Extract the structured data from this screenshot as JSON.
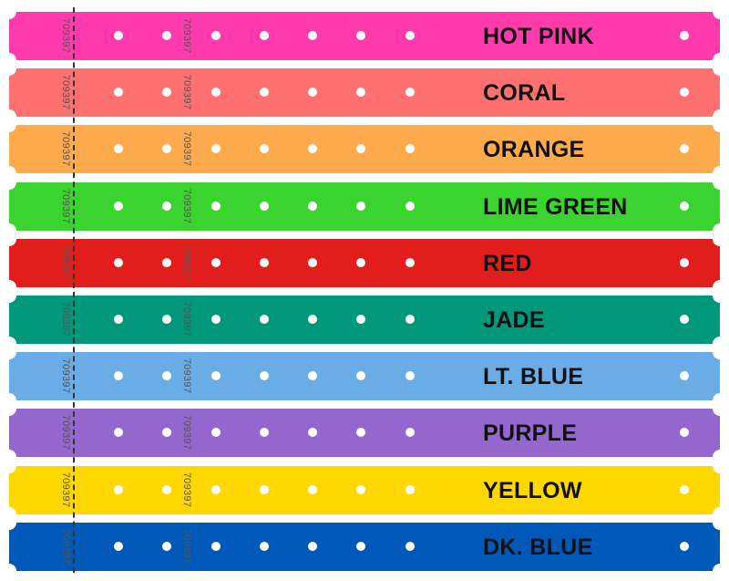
{
  "serial_number": "709397",
  "bands": [
    {
      "label": "HOT PINK",
      "color": "#ff3aad"
    },
    {
      "label": "CORAL",
      "color": "#ff7070"
    },
    {
      "label": "ORANGE",
      "color": "#ffaa4d"
    },
    {
      "label": "LIME GREEN",
      "color": "#3bd32f"
    },
    {
      "label": "RED",
      "color": "#e21e1c"
    },
    {
      "label": "JADE",
      "color": "#00977a"
    },
    {
      "label": "LT. BLUE",
      "color": "#6aace6"
    },
    {
      "label": "PURPLE",
      "color": "#9367cd"
    },
    {
      "label": "YELLOW",
      "color": "#ffd800"
    },
    {
      "label": "DK. BLUE",
      "color": "#0059b8"
    }
  ]
}
